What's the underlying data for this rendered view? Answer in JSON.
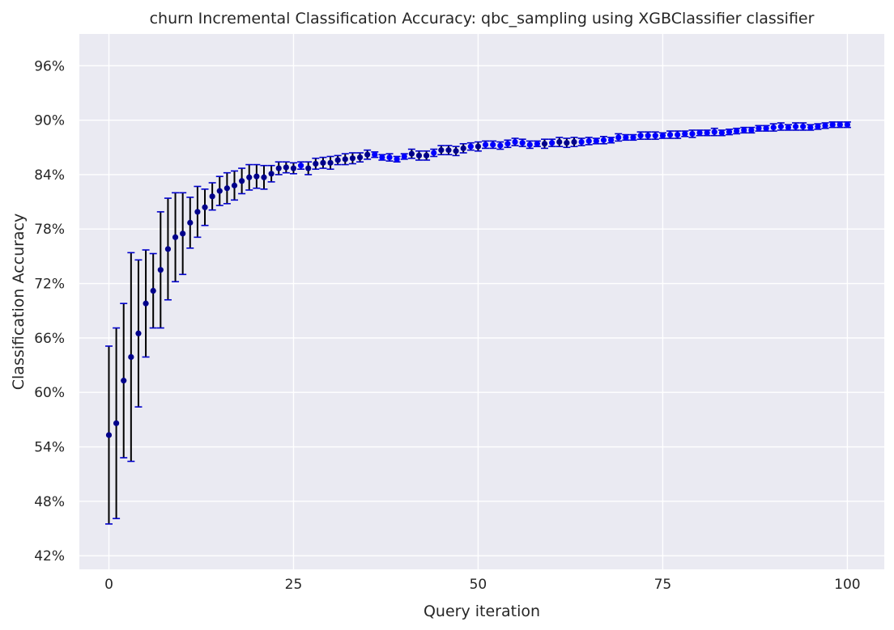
{
  "chart_data": {
    "type": "scatter",
    "title": "churn Incremental Classification Accuracy: qbc_sampling using XGBClassifier classifier",
    "xlabel": "Query iteration",
    "ylabel": "Classification Accuracy",
    "xlim": [
      -4,
      105
    ],
    "ylim": [
      40.5,
      99.5
    ],
    "x_ticks": [
      0,
      25,
      50,
      75,
      100
    ],
    "x_tick_labels": [
      "0",
      "25",
      "50",
      "75",
      "100"
    ],
    "y_ticks": [
      42,
      48,
      54,
      60,
      66,
      72,
      78,
      84,
      90,
      96
    ],
    "y_tick_labels": [
      "42%",
      "48%",
      "54%",
      "60%",
      "66%",
      "72%",
      "78%",
      "84%",
      "90%",
      "96%"
    ],
    "grid": true,
    "background_color": "#eaeaf2",
    "grid_color": "#ffffff",
    "errorbar_color": "#000000",
    "cap_color": "#0000cc",
    "point_color_low_error": "#0000ff",
    "point_color_high_error": "#00008b",
    "series": [
      {
        "x": [
          0,
          1,
          2,
          3,
          4,
          5,
          6,
          7,
          8,
          9,
          10,
          11,
          12,
          13,
          14,
          15,
          16,
          17,
          18,
          19,
          20,
          21,
          22,
          23,
          24,
          25,
          26,
          27,
          28,
          29,
          30,
          31,
          32,
          33,
          34,
          35,
          36,
          37,
          38,
          39,
          40,
          41,
          42,
          43,
          44,
          45,
          46,
          47,
          48,
          49,
          50,
          51,
          52,
          53,
          54,
          55,
          56,
          57,
          58,
          59,
          60,
          61,
          62,
          63,
          64,
          65,
          66,
          67,
          68,
          69,
          70,
          71,
          72,
          73,
          74,
          75,
          76,
          77,
          78,
          79,
          80,
          81,
          82,
          83,
          84,
          85,
          86,
          87,
          88,
          89,
          90,
          91,
          92,
          93,
          94,
          95,
          96,
          97,
          98,
          99,
          100
        ],
        "y": [
          55.3,
          56.6,
          61.3,
          63.9,
          66.5,
          69.8,
          71.2,
          73.5,
          75.8,
          77.1,
          77.5,
          78.7,
          79.9,
          80.4,
          81.6,
          82.2,
          82.5,
          82.8,
          83.3,
          83.7,
          83.8,
          83.7,
          84.1,
          84.7,
          84.8,
          84.7,
          85.0,
          84.7,
          85.2,
          85.3,
          85.3,
          85.6,
          85.7,
          85.8,
          85.9,
          86.2,
          86.2,
          85.9,
          85.9,
          85.7,
          86.0,
          86.3,
          86.1,
          86.1,
          86.4,
          86.7,
          86.7,
          86.6,
          86.9,
          87.1,
          87.1,
          87.3,
          87.3,
          87.2,
          87.4,
          87.6,
          87.5,
          87.3,
          87.4,
          87.4,
          87.5,
          87.6,
          87.5,
          87.6,
          87.6,
          87.7,
          87.7,
          87.8,
          87.8,
          88.1,
          88.1,
          88.1,
          88.3,
          88.3,
          88.3,
          88.3,
          88.4,
          88.4,
          88.5,
          88.5,
          88.6,
          88.6,
          88.7,
          88.6,
          88.7,
          88.8,
          88.9,
          88.9,
          89.1,
          89.1,
          89.2,
          89.3,
          89.2,
          89.3,
          89.3,
          89.2,
          89.3,
          89.4,
          89.5,
          89.5,
          89.5
        ],
        "err": [
          9.8,
          10.5,
          8.5,
          11.5,
          8.1,
          5.9,
          4.1,
          6.4,
          5.6,
          4.9,
          4.5,
          2.8,
          2.8,
          2.0,
          1.5,
          1.6,
          1.7,
          1.6,
          1.4,
          1.4,
          1.3,
          1.3,
          0.9,
          0.7,
          0.6,
          0.6,
          0.4,
          0.7,
          0.6,
          0.6,
          0.7,
          0.5,
          0.6,
          0.6,
          0.5,
          0.5,
          0.3,
          0.3,
          0.4,
          0.3,
          0.3,
          0.5,
          0.5,
          0.5,
          0.4,
          0.5,
          0.5,
          0.5,
          0.5,
          0.4,
          0.5,
          0.4,
          0.4,
          0.4,
          0.4,
          0.4,
          0.4,
          0.4,
          0.3,
          0.5,
          0.4,
          0.5,
          0.5,
          0.5,
          0.4,
          0.4,
          0.3,
          0.4,
          0.3,
          0.4,
          0.3,
          0.3,
          0.4,
          0.4,
          0.4,
          0.3,
          0.4,
          0.4,
          0.3,
          0.4,
          0.3,
          0.3,
          0.4,
          0.3,
          0.3,
          0.3,
          0.3,
          0.3,
          0.3,
          0.3,
          0.4,
          0.4,
          0.3,
          0.4,
          0.4,
          0.3,
          0.3,
          0.3,
          0.3,
          0.3,
          0.3
        ]
      }
    ]
  }
}
